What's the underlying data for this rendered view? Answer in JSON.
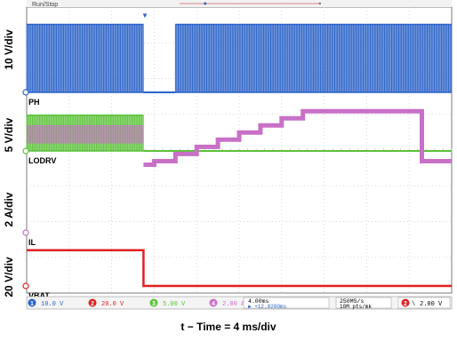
{
  "chart_data": {
    "type": "line",
    "title": "",
    "xlabel": "t − Time = 4 ms/div",
    "x_divisions": 10,
    "grid": true,
    "top_status": "Run/Stop",
    "channels": [
      {
        "id": "PH",
        "label": "PH",
        "scale_label": "10 V/div",
        "color": "#2b63c8",
        "description": "switch node, toggling between ~0 V and ~25 V; high pulse-train regions",
        "segments": [
          {
            "t_div": [
              0.0,
              2.75
            ],
            "state": "switching",
            "low_div": 0.0,
            "high_div": 1.9
          },
          {
            "t_div": [
              2.75,
              3.5
            ],
            "state": "low",
            "level_div": 0.0
          },
          {
            "t_div": [
              3.5,
              10.0
            ],
            "state": "switching",
            "low_div": 0.0,
            "high_div": 1.9
          }
        ]
      },
      {
        "id": "LODRV",
        "label": "LODRV",
        "scale_label": "5 V/div",
        "color": "#5cc23a",
        "segments": [
          {
            "t_div": [
              0.0,
              2.75
            ],
            "state": "switching",
            "low_div": 0.0,
            "high_div": 1.0
          },
          {
            "t_div": [
              2.75,
              10.0
            ],
            "state": "low",
            "level_div": 0.0
          }
        ]
      },
      {
        "id": "IL",
        "label": "IL",
        "scale_label": "2 A/div",
        "color": "#c870c8",
        "points": [
          [
            2.75,
            1.9
          ],
          [
            3.0,
            1.9
          ],
          [
            3.0,
            2.0
          ],
          [
            3.5,
            2.0
          ],
          [
            3.5,
            2.2
          ],
          [
            4.0,
            2.2
          ],
          [
            4.0,
            2.4
          ],
          [
            4.5,
            2.4
          ],
          [
            4.5,
            2.6
          ],
          [
            5.0,
            2.6
          ],
          [
            5.0,
            2.8
          ],
          [
            5.5,
            2.8
          ],
          [
            5.5,
            3.0
          ],
          [
            6.0,
            3.0
          ],
          [
            6.0,
            3.2
          ],
          [
            6.5,
            3.2
          ],
          [
            6.5,
            3.4
          ],
          [
            9.3,
            3.4
          ],
          [
            9.3,
            2.0
          ],
          [
            10.0,
            2.0
          ]
        ],
        "pre_band": {
          "t_div": [
            0.0,
            2.75
          ],
          "low_div": 2.5,
          "high_div": 3.0
        }
      },
      {
        "id": "VBAT",
        "label": "VBAT",
        "scale_label": "20 V/div",
        "color": "#e02020",
        "points": [
          [
            0.0,
            1.0
          ],
          [
            2.75,
            1.0
          ],
          [
            2.75,
            0.0
          ],
          [
            10.0,
            0.0
          ]
        ]
      }
    ],
    "status_bar": {
      "ch1": {
        "num": "1",
        "value": "10.0 V",
        "color": "#2b63c8"
      },
      "ch2": {
        "num": "2",
        "value": "20.0 V",
        "color": "#e02020"
      },
      "ch3": {
        "num": "3",
        "value": "5.00 V",
        "color": "#5cc23a"
      },
      "ch4": {
        "num": "4",
        "value": "2.00 A",
        "color": "#c870c8"
      },
      "timebase": "4.00ms",
      "position": "+12.0200ms",
      "sample_rate": "250MS/s",
      "record": "10M pts/mk",
      "trigger_ch": "2",
      "trigger_level": "2.00 V"
    }
  }
}
